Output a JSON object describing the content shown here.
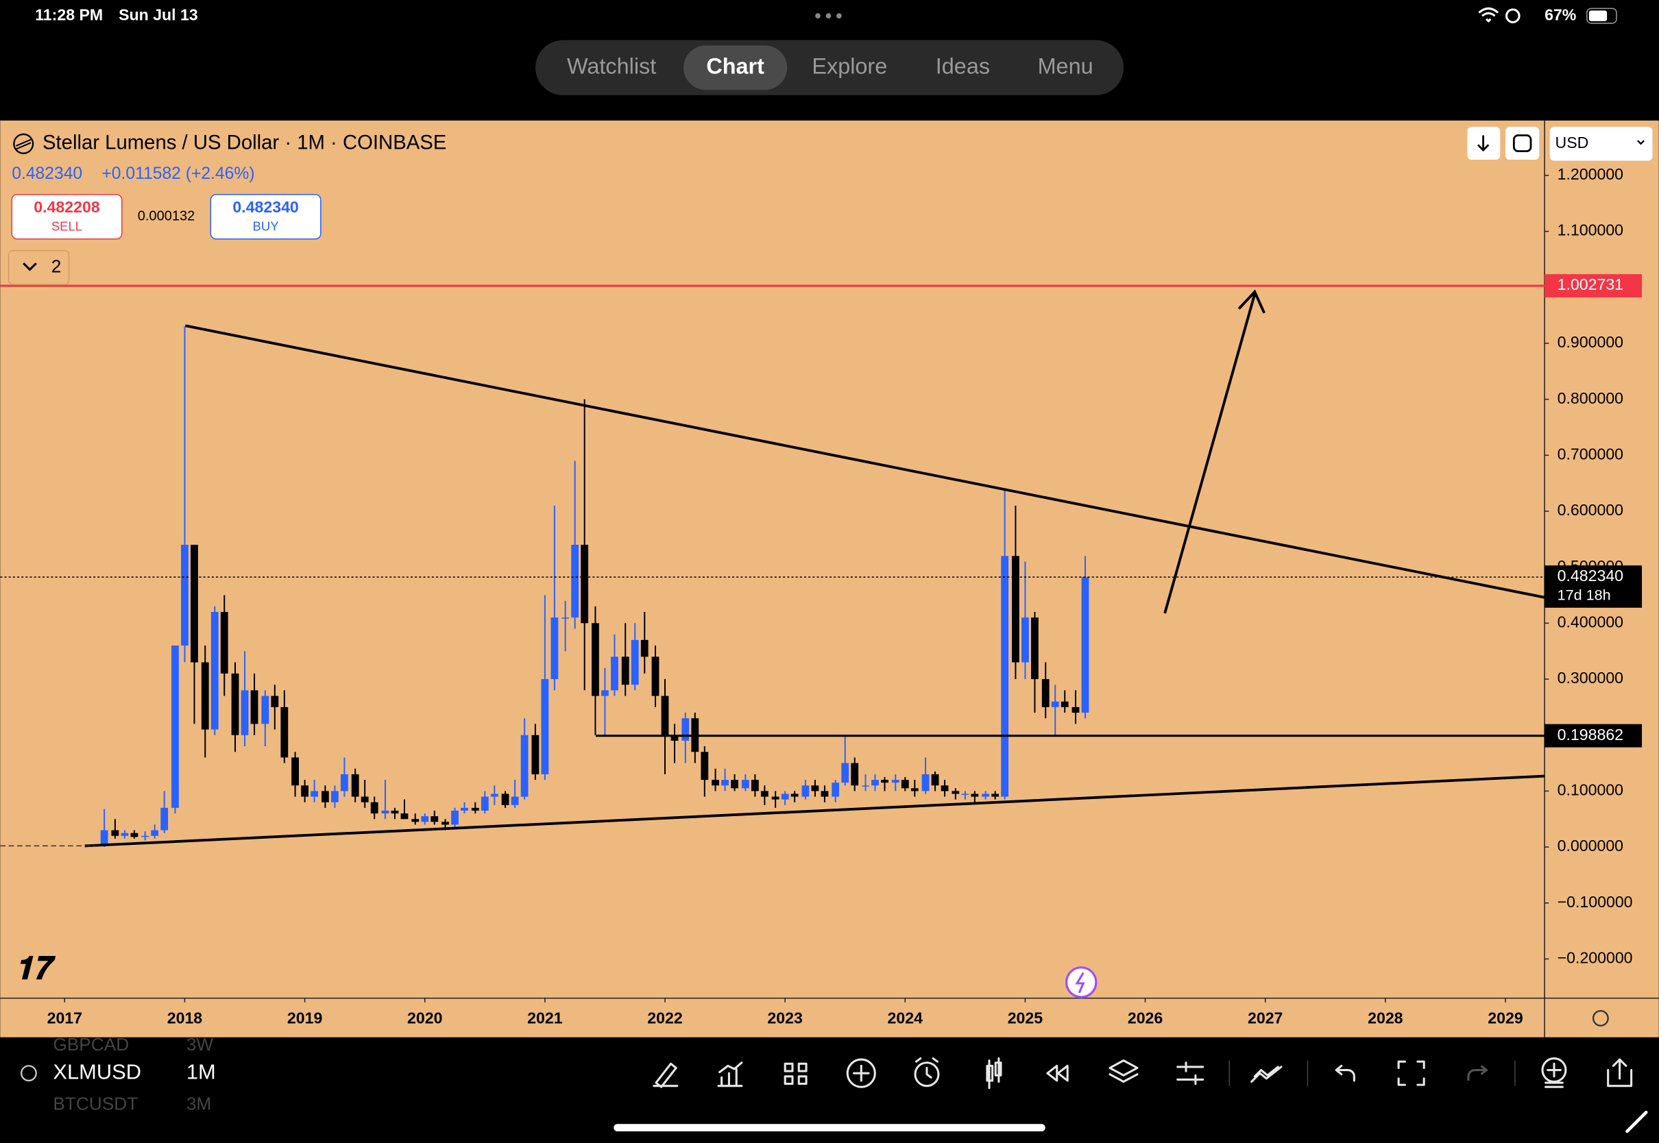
{
  "status_bar": {
    "time": "11:28 PM",
    "date": "Sun Jul 13",
    "battery": "67%"
  },
  "tabs": [
    "Watchlist",
    "Chart",
    "Explore",
    "Ideas",
    "Menu"
  ],
  "active_tab": 1,
  "header": {
    "title": "Stellar Lumens / US Dollar · 1M · COINBASE",
    "last": "0.482340",
    "change": "+0.011582 (+2.46%)",
    "sell": "0.482208",
    "sell_label": "SELL",
    "spread": "0.000132",
    "buy": "0.482340",
    "buy_label": "BUY",
    "indicators": "2",
    "currency": "USD"
  },
  "chart_data": {
    "type": "candlestick",
    "up_color": "#2962ff",
    "down_color": "#000000",
    "xlim": [
      2016.463,
      2029.326
    ],
    "xticks": [
      2017,
      2018,
      2019,
      2020,
      2021,
      2022,
      2023,
      2024,
      2025,
      2026,
      2027,
      2028,
      2029
    ],
    "ylim": [
      -0.27,
      1.298
    ],
    "yticks": [
      {
        "value": 1.2,
        "label": "1.200000"
      },
      {
        "value": 1.1,
        "label": "1.100000"
      },
      {
        "value": 1.0,
        "label": "1.000000"
      },
      {
        "value": 0.9,
        "label": "0.900000"
      },
      {
        "value": 0.8,
        "label": "0.800000"
      },
      {
        "value": 0.7,
        "label": "0.700000"
      },
      {
        "value": 0.6,
        "label": "0.600000"
      },
      {
        "value": 0.5,
        "label": "0.500000"
      },
      {
        "value": 0.4,
        "label": "0.400000"
      },
      {
        "value": 0.3,
        "label": "0.300000"
      },
      {
        "value": 0.2,
        "label": "0.200000"
      },
      {
        "value": 0.1,
        "label": "0.100000"
      },
      {
        "value": 0.0,
        "label": "0.000000"
      },
      {
        "value": -0.1,
        "label": "−0.100000"
      },
      {
        "value": -0.2,
        "label": "−0.200000"
      }
    ],
    "x": [
      2017.33,
      2017.42,
      2017.5,
      2017.58,
      2017.67,
      2017.75,
      2017.83,
      2017.92,
      2018.0,
      2018.08,
      2018.17,
      2018.25,
      2018.33,
      2018.42,
      2018.5,
      2018.58,
      2018.67,
      2018.75,
      2018.83,
      2018.92,
      2019.0,
      2019.08,
      2019.17,
      2019.25,
      2019.33,
      2019.42,
      2019.5,
      2019.58,
      2019.67,
      2019.75,
      2019.83,
      2019.92,
      2020.0,
      2020.08,
      2020.17,
      2020.25,
      2020.33,
      2020.42,
      2020.5,
      2020.58,
      2020.67,
      2020.75,
      2020.83,
      2020.92,
      2021.0,
      2021.08,
      2021.17,
      2021.25,
      2021.33,
      2021.42,
      2021.5,
      2021.58,
      2021.67,
      2021.75,
      2021.83,
      2021.92,
      2022.0,
      2022.08,
      2022.17,
      2022.25,
      2022.33,
      2022.42,
      2022.5,
      2022.58,
      2022.67,
      2022.75,
      2022.83,
      2022.92,
      2023.0,
      2023.08,
      2023.17,
      2023.25,
      2023.33,
      2023.42,
      2023.5,
      2023.58,
      2023.67,
      2023.75,
      2023.83,
      2023.92,
      2024.0,
      2024.08,
      2024.17,
      2024.25,
      2024.33,
      2024.42,
      2024.5,
      2024.58,
      2024.67,
      2024.75,
      2024.83,
      2024.92,
      2025.0,
      2025.08,
      2025.17,
      2025.25,
      2025.33,
      2025.42,
      2025.5
    ],
    "open": [
      0.002,
      0.03,
      0.02,
      0.025,
      0.018,
      0.02,
      0.03,
      0.07,
      0.36,
      0.54,
      0.33,
      0.21,
      0.42,
      0.31,
      0.2,
      0.28,
      0.22,
      0.27,
      0.25,
      0.16,
      0.11,
      0.09,
      0.1,
      0.08,
      0.1,
      0.13,
      0.09,
      0.08,
      0.06,
      0.065,
      0.06,
      0.05,
      0.045,
      0.055,
      0.045,
      0.04,
      0.065,
      0.07,
      0.065,
      0.09,
      0.095,
      0.075,
      0.09,
      0.2,
      0.13,
      0.3,
      0.41,
      0.41,
      0.54,
      0.4,
      0.27,
      0.28,
      0.34,
      0.29,
      0.37,
      0.34,
      0.27,
      0.2,
      0.19,
      0.23,
      0.17,
      0.12,
      0.11,
      0.12,
      0.105,
      0.12,
      0.1,
      0.09,
      0.085,
      0.095,
      0.09,
      0.11,
      0.1,
      0.09,
      0.115,
      0.15,
      0.11,
      0.11,
      0.12,
      0.115,
      0.12,
      0.105,
      0.1,
      0.13,
      0.11,
      0.1,
      0.095,
      0.095,
      0.09,
      0.095,
      0.09,
      0.52,
      0.33,
      0.41,
      0.3,
      0.25,
      0.26,
      0.25,
      0.24
    ],
    "high": [
      0.068,
      0.05,
      0.03,
      0.03,
      0.028,
      0.04,
      0.1,
      0.36,
      0.93,
      0.54,
      0.36,
      0.43,
      0.45,
      0.33,
      0.35,
      0.31,
      0.28,
      0.29,
      0.28,
      0.17,
      0.12,
      0.12,
      0.11,
      0.11,
      0.16,
      0.14,
      0.12,
      0.09,
      0.12,
      0.07,
      0.085,
      0.06,
      0.06,
      0.065,
      0.05,
      0.07,
      0.08,
      0.08,
      0.1,
      0.11,
      0.1,
      0.12,
      0.23,
      0.22,
      0.45,
      0.61,
      0.44,
      0.69,
      0.8,
      0.43,
      0.32,
      0.38,
      0.4,
      0.4,
      0.42,
      0.36,
      0.3,
      0.22,
      0.24,
      0.24,
      0.18,
      0.14,
      0.14,
      0.13,
      0.13,
      0.13,
      0.11,
      0.1,
      0.1,
      0.1,
      0.12,
      0.12,
      0.11,
      0.12,
      0.2,
      0.16,
      0.13,
      0.13,
      0.125,
      0.13,
      0.125,
      0.12,
      0.16,
      0.135,
      0.12,
      0.105,
      0.1,
      0.1,
      0.1,
      0.1,
      0.64,
      0.61,
      0.51,
      0.42,
      0.33,
      0.29,
      0.28,
      0.28,
      0.52
    ],
    "low": [
      0,
      0.015,
      0.015,
      0.015,
      0.012,
      0.015,
      0.025,
      0.06,
      0.33,
      0.22,
      0.16,
      0.2,
      0.27,
      0.17,
      0.18,
      0.2,
      0.18,
      0.21,
      0.15,
      0.09,
      0.08,
      0.08,
      0.07,
      0.07,
      0.09,
      0.08,
      0.07,
      0.05,
      0.05,
      0.05,
      0.05,
      0.04,
      0.04,
      0.04,
      0.03,
      0.035,
      0.06,
      0.06,
      0.06,
      0.075,
      0.07,
      0.07,
      0.085,
      0.12,
      0.12,
      0.28,
      0.35,
      0.39,
      0.28,
      0.2,
      0.2,
      0.27,
      0.27,
      0.28,
      0.31,
      0.25,
      0.13,
      0.15,
      0.15,
      0.15,
      0.09,
      0.1,
      0.1,
      0.1,
      0.1,
      0.09,
      0.075,
      0.07,
      0.075,
      0.08,
      0.085,
      0.09,
      0.08,
      0.08,
      0.11,
      0.1,
      0.1,
      0.1,
      0.1,
      0.1,
      0.1,
      0.09,
      0.095,
      0.1,
      0.09,
      0.085,
      0.085,
      0.08,
      0.085,
      0.085,
      0.085,
      0.3,
      0.3,
      0.24,
      0.23,
      0.2,
      0.24,
      0.22,
      0.23
    ],
    "close": [
      0.03,
      0.02,
      0.025,
      0.018,
      0.02,
      0.03,
      0.07,
      0.36,
      0.54,
      0.33,
      0.21,
      0.42,
      0.31,
      0.2,
      0.28,
      0.22,
      0.27,
      0.25,
      0.16,
      0.11,
      0.09,
      0.1,
      0.08,
      0.1,
      0.13,
      0.09,
      0.08,
      0.06,
      0.065,
      0.06,
      0.05,
      0.045,
      0.055,
      0.045,
      0.04,
      0.065,
      0.07,
      0.065,
      0.09,
      0.095,
      0.075,
      0.09,
      0.2,
      0.13,
      0.3,
      0.41,
      0.41,
      0.54,
      0.4,
      0.27,
      0.28,
      0.34,
      0.29,
      0.37,
      0.34,
      0.27,
      0.2,
      0.19,
      0.23,
      0.17,
      0.12,
      0.11,
      0.12,
      0.105,
      0.12,
      0.1,
      0.09,
      0.085,
      0.095,
      0.09,
      0.11,
      0.1,
      0.09,
      0.115,
      0.15,
      0.11,
      0.11,
      0.12,
      0.115,
      0.12,
      0.105,
      0.1,
      0.13,
      0.11,
      0.1,
      0.095,
      0.095,
      0.09,
      0.095,
      0.09,
      0.52,
      0.33,
      0.41,
      0.3,
      0.25,
      0.26,
      0.25,
      0.24,
      0.48234
    ],
    "price_lines": [
      {
        "value": 1.002731,
        "label": "1.002731",
        "color": "#f23645"
      },
      {
        "value": 0.198862,
        "label": "0.198862",
        "color": "#000000"
      }
    ],
    "last_price": {
      "value": 0.48234,
      "label": "0.482340",
      "countdown": "17d 18h"
    }
  },
  "toolbar": {
    "symbol": "XLMUSD",
    "interval": "1M",
    "recent": [
      {
        "symbol": "GBPCAD",
        "interval": "3W"
      },
      {
        "symbol": "BTCUSDT",
        "interval": "3M"
      }
    ]
  }
}
